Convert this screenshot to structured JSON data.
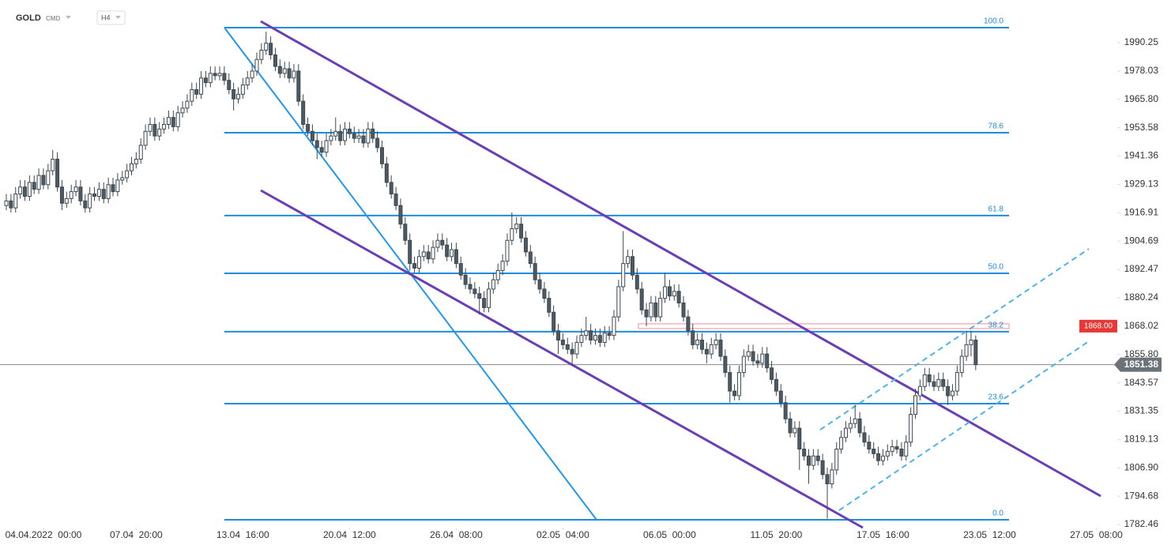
{
  "toolbar": {
    "symbol": "GOLD",
    "market": "CMD",
    "timeframe": "H4"
  },
  "chart_data": {
    "type": "candlestick",
    "xlim": [
      0,
      240
    ],
    "ylim": [
      1780.42,
      2008.64
    ],
    "xticks": [
      {
        "value": 8,
        "label": "04.04.2022  00:00"
      },
      {
        "value": 28,
        "label": "07.04  20:00"
      },
      {
        "value": 51,
        "label": "13.04  16:00"
      },
      {
        "value": 74,
        "label": "20.04  12:00"
      },
      {
        "value": 97,
        "label": "26.04  08:00"
      },
      {
        "value": 120,
        "label": "02.05  04:00"
      },
      {
        "value": 143,
        "label": "06.05  00:00"
      },
      {
        "value": 166,
        "label": "11.05  20:00"
      },
      {
        "value": 189,
        "label": "17.05  16:00"
      },
      {
        "value": 212,
        "label": "23.05  12:00"
      },
      {
        "value": 235,
        "label": "27.05  08:00"
      }
    ],
    "yticks": [
      1990.25,
      1978.03,
      {
        "value": 1965.8,
        "label": "1965.80"
      },
      1953.58,
      1941.36,
      1929.13,
      1916.91,
      1904.69,
      1892.47,
      1880.24,
      1868.02,
      {
        "value": 1855.8,
        "label": "1855.80"
      },
      1843.57,
      1831.35,
      1819.13,
      {
        "value": 1806.9,
        "label": "1806.90"
      },
      1794.68,
      1782.46
    ],
    "up_color": "#ffffff",
    "down_color": "#4d5a63",
    "edge_color": "#3c4850",
    "last_price": 1851.38,
    "level": {
      "value": 1868,
      "label": "1868.00"
    },
    "fib_levels": [
      {
        "label": "100.0",
        "value": 1996.7
      },
      {
        "label": "78.6",
        "value": 1951.4
      },
      {
        "label": "61.8",
        "value": 1915.7
      },
      {
        "label": "50.0",
        "value": 1890.8
      },
      {
        "label": "38.2",
        "value": 1865.6
      },
      {
        "label": "23.6",
        "value": 1834.6
      },
      {
        "label": "0.0",
        "value": 1784.5
      }
    ],
    "candles": [
      [
        1920,
        1925,
        1918,
        1922
      ],
      [
        1922,
        1925,
        1917,
        1919
      ],
      [
        1919,
        1928,
        1917,
        1925
      ],
      [
        1925,
        1931,
        1923,
        1928
      ],
      [
        1928,
        1931,
        1922,
        1924
      ],
      [
        1924,
        1933,
        1922,
        1930
      ],
      [
        1930,
        1933,
        1925,
        1927
      ],
      [
        1927,
        1936,
        1925,
        1933
      ],
      [
        1933,
        1936,
        1927,
        1929
      ],
      [
        1929,
        1938,
        1927,
        1935
      ],
      [
        1935,
        1944,
        1933,
        1940
      ],
      [
        1940,
        1943,
        1926,
        1928
      ],
      [
        1928,
        1931,
        1918,
        1921
      ],
      [
        1921,
        1926,
        1919,
        1923
      ],
      [
        1923,
        1929,
        1921,
        1926
      ],
      [
        1926,
        1931,
        1924,
        1928
      ],
      [
        1928,
        1931,
        1920,
        1922
      ],
      [
        1922,
        1925,
        1917,
        1919
      ],
      [
        1919,
        1928,
        1917,
        1925
      ],
      [
        1925,
        1928,
        1922,
        1924
      ],
      [
        1924,
        1930,
        1922,
        1927
      ],
      [
        1927,
        1930,
        1921,
        1923
      ],
      [
        1923,
        1932,
        1921,
        1929
      ],
      [
        1929,
        1932,
        1924,
        1926
      ],
      [
        1926,
        1934,
        1924,
        1931
      ],
      [
        1931,
        1935,
        1929,
        1932
      ],
      [
        1932,
        1938,
        1930,
        1935
      ],
      [
        1935,
        1941,
        1933,
        1938
      ],
      [
        1938,
        1943,
        1936,
        1940
      ],
      [
        1940,
        1949,
        1938,
        1946
      ],
      [
        1946,
        1955,
        1944,
        1952
      ],
      [
        1952,
        1958,
        1950,
        1955
      ],
      [
        1955,
        1958,
        1948,
        1950
      ],
      [
        1950,
        1956,
        1948,
        1953
      ],
      [
        1953,
        1958,
        1951,
        1955
      ],
      [
        1955,
        1961,
        1953,
        1958
      ],
      [
        1958,
        1961,
        1952,
        1954
      ],
      [
        1954,
        1963,
        1952,
        1960
      ],
      [
        1960,
        1965,
        1958,
        1962
      ],
      [
        1962,
        1968,
        1960,
        1965
      ],
      [
        1965,
        1973,
        1963,
        1970
      ],
      [
        1970,
        1973,
        1966,
        1968
      ],
      [
        1968,
        1978,
        1966,
        1975
      ],
      [
        1975,
        1978,
        1971,
        1973
      ],
      [
        1973,
        1980,
        1971,
        1977
      ],
      [
        1977,
        1980,
        1974,
        1976
      ],
      [
        1976,
        1980,
        1974,
        1977
      ],
      [
        1977,
        1980,
        1972,
        1974
      ],
      [
        1974,
        1977,
        1968,
        1970
      ],
      [
        1970,
        1973,
        1961,
        1966
      ],
      [
        1966,
        1971,
        1964,
        1968
      ],
      [
        1968,
        1975,
        1966,
        1972
      ],
      [
        1972,
        1978,
        1970,
        1975
      ],
      [
        1975,
        1981,
        1973,
        1978
      ],
      [
        1978,
        1986,
        1976,
        1983
      ],
      [
        1983,
        1990,
        1981,
        1987
      ],
      [
        1987,
        1995,
        1985,
        1990
      ],
      [
        1990,
        1993,
        1983,
        1985
      ],
      [
        1985,
        1988,
        1978,
        1980
      ],
      [
        1980,
        1983,
        1975,
        1977
      ],
      [
        1977,
        1982,
        1975,
        1979
      ],
      [
        1979,
        1982,
        1973,
        1975
      ],
      [
        1975,
        1981,
        1973,
        1978
      ],
      [
        1978,
        1981,
        1963,
        1965
      ],
      [
        1965,
        1968,
        1953,
        1955
      ],
      [
        1955,
        1958,
        1950,
        1952
      ],
      [
        1952,
        1955,
        1946,
        1948
      ],
      [
        1948,
        1951,
        1940,
        1945
      ],
      [
        1945,
        1948,
        1941,
        1943
      ],
      [
        1943,
        1951,
        1941,
        1948
      ],
      [
        1948,
        1953,
        1946,
        1950
      ],
      [
        1950,
        1958,
        1948,
        1952
      ],
      [
        1952,
        1955,
        1946,
        1948
      ],
      [
        1948,
        1956,
        1946,
        1953
      ],
      [
        1953,
        1956,
        1949,
        1951
      ],
      [
        1951,
        1954,
        1947,
        1949
      ],
      [
        1949,
        1953,
        1947,
        1950
      ],
      [
        1950,
        1953,
        1945,
        1947
      ],
      [
        1947,
        1956,
        1945,
        1953
      ],
      [
        1953,
        1956,
        1947,
        1949
      ],
      [
        1949,
        1952,
        1943,
        1945
      ],
      [
        1945,
        1948,
        1936,
        1938
      ],
      [
        1938,
        1941,
        1928,
        1930
      ],
      [
        1930,
        1933,
        1923,
        1925
      ],
      [
        1925,
        1928,
        1918,
        1920
      ],
      [
        1920,
        1923,
        1910,
        1912
      ],
      [
        1912,
        1915,
        1903,
        1905
      ],
      [
        1905,
        1908,
        1892,
        1895
      ],
      [
        1895,
        1898,
        1891,
        1893
      ],
      [
        1893,
        1901,
        1891,
        1898
      ],
      [
        1898,
        1903,
        1896,
        1900
      ],
      [
        1900,
        1903,
        1895,
        1897
      ],
      [
        1897,
        1905,
        1895,
        1902
      ],
      [
        1902,
        1908,
        1900,
        1905
      ],
      [
        1905,
        1908,
        1901,
        1903
      ],
      [
        1903,
        1906,
        1896,
        1898
      ],
      [
        1898,
        1904,
        1896,
        1901
      ],
      [
        1901,
        1904,
        1893,
        1895
      ],
      [
        1895,
        1898,
        1888,
        1890
      ],
      [
        1890,
        1893,
        1884,
        1886
      ],
      [
        1886,
        1889,
        1882,
        1884
      ],
      [
        1884,
        1887,
        1880,
        1882
      ],
      [
        1882,
        1885,
        1873,
        1880
      ],
      [
        1880,
        1883,
        1874,
        1876
      ],
      [
        1876,
        1887,
        1874,
        1884
      ],
      [
        1884,
        1891,
        1882,
        1888
      ],
      [
        1888,
        1895,
        1886,
        1892
      ],
      [
        1892,
        1899,
        1890,
        1896
      ],
      [
        1896,
        1908,
        1894,
        1905
      ],
      [
        1905,
        1917,
        1903,
        1910
      ],
      [
        1910,
        1915,
        1908,
        1912
      ],
      [
        1912,
        1915,
        1904,
        1906
      ],
      [
        1906,
        1909,
        1898,
        1900
      ],
      [
        1900,
        1903,
        1893,
        1895
      ],
      [
        1895,
        1898,
        1886,
        1888
      ],
      [
        1888,
        1891,
        1882,
        1884
      ],
      [
        1884,
        1887,
        1878,
        1880
      ],
      [
        1880,
        1883,
        1872,
        1874
      ],
      [
        1874,
        1877,
        1864,
        1866
      ],
      [
        1866,
        1869,
        1856,
        1862
      ],
      [
        1862,
        1865,
        1858,
        1860
      ],
      [
        1860,
        1863,
        1856,
        1858
      ],
      [
        1858,
        1861,
        1851,
        1856
      ],
      [
        1856,
        1864,
        1854,
        1861
      ],
      [
        1861,
        1867,
        1859,
        1864
      ],
      [
        1864,
        1872,
        1862,
        1866
      ],
      [
        1866,
        1869,
        1860,
        1862
      ],
      [
        1862,
        1867,
        1860,
        1864
      ],
      [
        1864,
        1867,
        1859,
        1861
      ],
      [
        1861,
        1868,
        1859,
        1865
      ],
      [
        1865,
        1868,
        1862,
        1864
      ],
      [
        1864,
        1875,
        1862,
        1872
      ],
      [
        1872,
        1888,
        1870,
        1885
      ],
      [
        1885,
        1909,
        1883,
        1895
      ],
      [
        1895,
        1901,
        1893,
        1898
      ],
      [
        1898,
        1901,
        1888,
        1890
      ],
      [
        1890,
        1893,
        1882,
        1884
      ],
      [
        1884,
        1887,
        1873,
        1875
      ],
      [
        1875,
        1878,
        1868,
        1872
      ],
      [
        1872,
        1881,
        1870,
        1878
      ],
      [
        1878,
        1881,
        1870,
        1872
      ],
      [
        1872,
        1883,
        1870,
        1880
      ],
      [
        1880,
        1891,
        1878,
        1885
      ],
      [
        1885,
        1888,
        1879,
        1881
      ],
      [
        1881,
        1886,
        1879,
        1883
      ],
      [
        1883,
        1886,
        1876,
        1878
      ],
      [
        1878,
        1881,
        1870,
        1872
      ],
      [
        1872,
        1875,
        1864,
        1866
      ],
      [
        1866,
        1869,
        1858,
        1860
      ],
      [
        1860,
        1865,
        1858,
        1862
      ],
      [
        1862,
        1865,
        1856,
        1858
      ],
      [
        1858,
        1861,
        1852,
        1856
      ],
      [
        1856,
        1863,
        1854,
        1860
      ],
      [
        1860,
        1865,
        1858,
        1862
      ],
      [
        1862,
        1865,
        1853,
        1855
      ],
      [
        1855,
        1858,
        1846,
        1848
      ],
      [
        1848,
        1851,
        1835,
        1840
      ],
      [
        1840,
        1843,
        1836,
        1838
      ],
      [
        1838,
        1851,
        1836,
        1848
      ],
      [
        1848,
        1858,
        1846,
        1855
      ],
      [
        1855,
        1860,
        1853,
        1857
      ],
      [
        1857,
        1860,
        1851,
        1853
      ],
      [
        1853,
        1856,
        1850,
        1852
      ],
      [
        1852,
        1859,
        1850,
        1856
      ],
      [
        1856,
        1859,
        1848,
        1850
      ],
      [
        1850,
        1853,
        1843,
        1845
      ],
      [
        1845,
        1848,
        1838,
        1840
      ],
      [
        1840,
        1843,
        1833,
        1835
      ],
      [
        1835,
        1838,
        1826,
        1828
      ],
      [
        1828,
        1831,
        1820,
        1822
      ],
      [
        1822,
        1827,
        1820,
        1824
      ],
      [
        1824,
        1827,
        1806,
        1815
      ],
      [
        1815,
        1818,
        1810,
        1812
      ],
      [
        1812,
        1815,
        1800,
        1808
      ],
      [
        1808,
        1815,
        1806,
        1812
      ],
      [
        1812,
        1815,
        1808,
        1810
      ],
      [
        1810,
        1813,
        1802,
        1804
      ],
      [
        1804,
        1807,
        1785,
        1800
      ],
      [
        1800,
        1809,
        1798,
        1806
      ],
      [
        1806,
        1818,
        1804,
        1815
      ],
      [
        1815,
        1823,
        1813,
        1820
      ],
      [
        1820,
        1827,
        1818,
        1824
      ],
      [
        1824,
        1829,
        1822,
        1826
      ],
      [
        1826,
        1834,
        1824,
        1828
      ],
      [
        1828,
        1831,
        1820,
        1822
      ],
      [
        1822,
        1825,
        1816,
        1818
      ],
      [
        1818,
        1821,
        1813,
        1815
      ],
      [
        1815,
        1818,
        1811,
        1813
      ],
      [
        1813,
        1816,
        1808,
        1810
      ],
      [
        1810,
        1815,
        1808,
        1812
      ],
      [
        1812,
        1817,
        1810,
        1814
      ],
      [
        1814,
        1819,
        1812,
        1816
      ],
      [
        1816,
        1819,
        1813,
        1815
      ],
      [
        1815,
        1818,
        1810,
        1812
      ],
      [
        1812,
        1821,
        1810,
        1818
      ],
      [
        1818,
        1833,
        1816,
        1830
      ],
      [
        1830,
        1841,
        1828,
        1838
      ],
      [
        1838,
        1845,
        1836,
        1842
      ],
      [
        1842,
        1850,
        1840,
        1847
      ],
      [
        1847,
        1850,
        1842,
        1844
      ],
      [
        1844,
        1847,
        1840,
        1842
      ],
      [
        1842,
        1848,
        1840,
        1845
      ],
      [
        1845,
        1848,
        1840,
        1842
      ],
      [
        1842,
        1845,
        1834,
        1838
      ],
      [
        1838,
        1843,
        1836,
        1840
      ],
      [
        1840,
        1851,
        1838,
        1848
      ],
      [
        1848,
        1858,
        1846,
        1855
      ],
      [
        1855,
        1866,
        1853,
        1860
      ],
      [
        1860,
        1866,
        1855,
        1862
      ],
      [
        1862,
        1864,
        1849,
        1851.38
      ]
    ]
  }
}
